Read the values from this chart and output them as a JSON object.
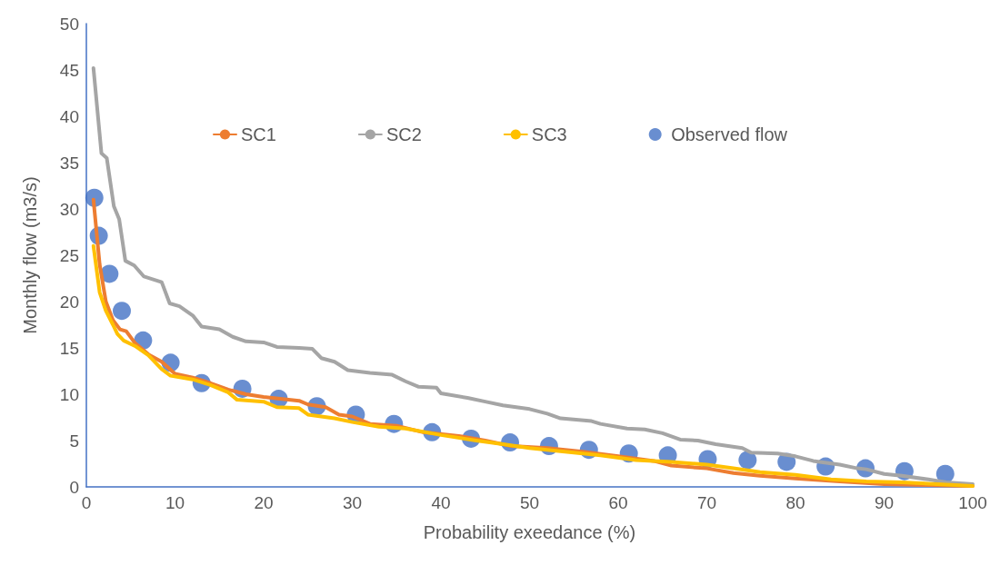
{
  "chart_data": {
    "type": "line",
    "xlabel": "Probability exeedance (%)",
    "ylabel": "Monthly flow (m3/s)",
    "xlim": [
      0,
      100
    ],
    "xticks": [
      0,
      10,
      20,
      30,
      40,
      50,
      60,
      70,
      80,
      90,
      100
    ],
    "ylim": [
      0,
      50
    ],
    "yticks": [
      0,
      5,
      10,
      15,
      20,
      25,
      30,
      35,
      40,
      45,
      50
    ],
    "grid": false,
    "legend": "top",
    "series": [
      {
        "name": "SC1",
        "marker": "none",
        "color": "#ed7d31",
        "x": [
          0.8,
          1.5,
          2.2,
          3,
          3.8,
          4.5,
          5.5,
          7,
          8.5,
          10,
          12,
          14,
          16,
          18,
          20,
          24,
          25,
          27,
          28.5,
          30,
          32,
          35,
          38,
          42,
          45,
          48,
          52,
          56,
          60,
          64,
          66,
          70,
          73,
          76,
          80,
          85,
          90,
          95,
          100
        ],
        "values": [
          31,
          24,
          20,
          18,
          17,
          16.8,
          15.5,
          14.3,
          13.5,
          12.2,
          11.8,
          11.2,
          10.5,
          10,
          9.7,
          9.3,
          8.9,
          8.6,
          7.8,
          7.6,
          6.8,
          6.6,
          5.9,
          5.5,
          5,
          4.4,
          4.2,
          3.8,
          3.3,
          2.8,
          2.3,
          2,
          1.5,
          1.2,
          0.9,
          0.6,
          0.3,
          0.2,
          0.1
        ]
      },
      {
        "name": "SC2",
        "marker": "none",
        "color": "#a5a5a5",
        "x": [
          0.8,
          1.7,
          2.3,
          3.1,
          3.7,
          4.4,
          5.4,
          6.5,
          8.5,
          9.4,
          10.5,
          12,
          13,
          15,
          16.5,
          18,
          20,
          21.5,
          24,
          25.5,
          26.5,
          28,
          29.5,
          32,
          34.5,
          36,
          37.5,
          39.5,
          40,
          43,
          45,
          47,
          50,
          52,
          53.5,
          57,
          58,
          61,
          63,
          65,
          67,
          69,
          71,
          74,
          75,
          78,
          80,
          82,
          85,
          87,
          88,
          90,
          92,
          95,
          97,
          100
        ],
        "values": [
          45.2,
          36,
          35.5,
          30.3,
          28.9,
          24.4,
          23.9,
          22.7,
          22.1,
          19.8,
          19.5,
          18.5,
          17.3,
          17,
          16.2,
          15.7,
          15.6,
          15.1,
          15,
          14.9,
          13.9,
          13.5,
          12.6,
          12.3,
          12.1,
          11.4,
          10.8,
          10.7,
          10.1,
          9.6,
          9.2,
          8.8,
          8.4,
          7.9,
          7.4,
          7.1,
          6.8,
          6.3,
          6.2,
          5.8,
          5.1,
          5,
          4.6,
          4.2,
          3.7,
          3.6,
          3.3,
          2.8,
          2.4,
          2,
          1.9,
          1.4,
          1.2,
          0.8,
          0.5,
          0.3
        ]
      },
      {
        "name": "SC3",
        "marker": "none",
        "color": "#ffc000",
        "x": [
          0.8,
          1.5,
          2.2,
          3,
          3.5,
          4.2,
          5.5,
          7,
          8.5,
          9.5,
          12,
          14,
          16,
          17,
          20,
          21.5,
          24,
          25,
          28,
          30,
          33,
          36,
          40,
          44,
          47,
          50,
          54,
          58,
          62,
          66,
          70,
          73,
          76,
          80,
          84,
          88,
          92,
          96,
          100
        ],
        "values": [
          26,
          21,
          19,
          17.5,
          16.5,
          15.8,
          15.2,
          14.2,
          12.7,
          12,
          11.6,
          11,
          10.2,
          9.4,
          9.2,
          8.6,
          8.5,
          7.8,
          7.4,
          7,
          6.5,
          6.3,
          5.6,
          5,
          4.6,
          4.2,
          3.8,
          3.4,
          2.9,
          2.7,
          2.4,
          2,
          1.6,
          1.3,
          0.8,
          0.6,
          0.5,
          0.3,
          0.1
        ]
      },
      {
        "name": "Observed flow",
        "type": "scatter",
        "marker": "circle",
        "color": "#4472c4",
        "x": [
          0.9,
          1.4,
          2.6,
          4,
          6.4,
          9.5,
          13,
          17.6,
          21.7,
          26,
          30.4,
          34.7,
          39,
          43.4,
          47.8,
          52.2,
          56.7,
          61.2,
          65.6,
          70.1,
          74.6,
          79,
          83.4,
          87.9,
          92.3,
          96.9
        ],
        "values": [
          31.2,
          27.1,
          23,
          19,
          15.8,
          13.4,
          11.2,
          10.6,
          9.5,
          8.7,
          7.8,
          6.8,
          5.9,
          5.2,
          4.8,
          4.4,
          4,
          3.6,
          3.4,
          3,
          2.9,
          2.7,
          2.2,
          2,
          1.7,
          1.4
        ]
      }
    ]
  }
}
